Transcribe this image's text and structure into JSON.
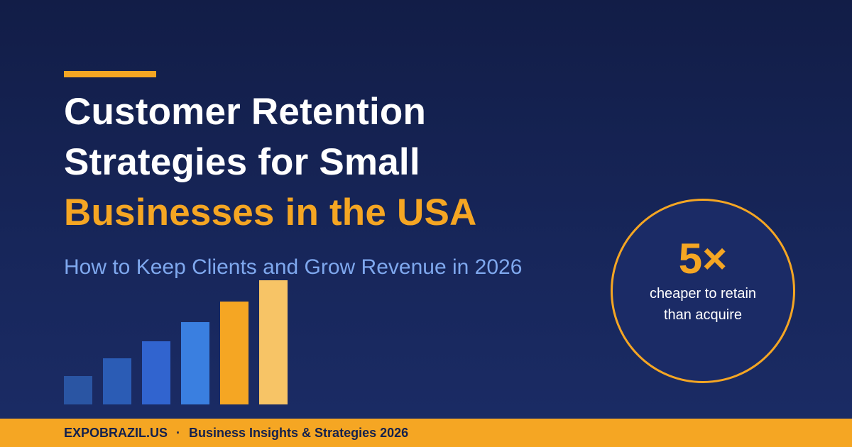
{
  "headline": {
    "line1": "Customer Retention",
    "line2": "Strategies for Small",
    "line3": "Businesses in the USA"
  },
  "subtitle": "How to Keep Clients and Grow Revenue in 2026",
  "bar_graphic": {
    "relative_levels": [
      0.23,
      0.37,
      0.51,
      0.66,
      0.83,
      1.0
    ],
    "colors": [
      "#2a55a3",
      "#2b5cb5",
      "#3164cf",
      "#3a7fe0",
      "#f5a623",
      "#f7c466"
    ]
  },
  "stat": {
    "value": "5×",
    "caption_line1": "cheaper to retain",
    "caption_line2": "than acquire"
  },
  "footer": {
    "brand": "EXPOBRAZIL.US",
    "separator": "·",
    "tagline": "Business Insights & Strategies 2026"
  },
  "colors": {
    "background": "#17265a",
    "accent": "#f5a623",
    "subtitle": "#7fa8ee",
    "footer_text": "#14214d"
  }
}
